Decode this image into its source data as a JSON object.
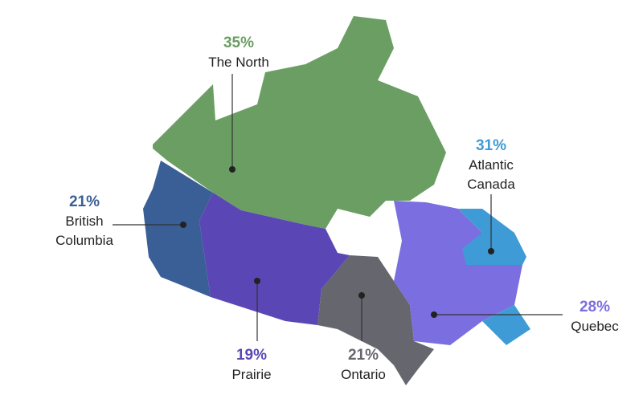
{
  "regions": [
    {
      "share": "35%",
      "name": "The North",
      "color": "#6a9e63"
    },
    {
      "share": "21%",
      "name": "British Columbia",
      "color": "#3a5f97"
    },
    {
      "share": "19%",
      "name": "Prairie",
      "color": "#5b46b5"
    },
    {
      "share": "21%",
      "name": "Ontario",
      "color": "#66666e"
    },
    {
      "share": "28%",
      "name": "Quebec",
      "color": "#7b6ee0"
    },
    {
      "share": "31%",
      "name": "Atlantic Canada",
      "color": "#3e9bd5"
    }
  ]
}
